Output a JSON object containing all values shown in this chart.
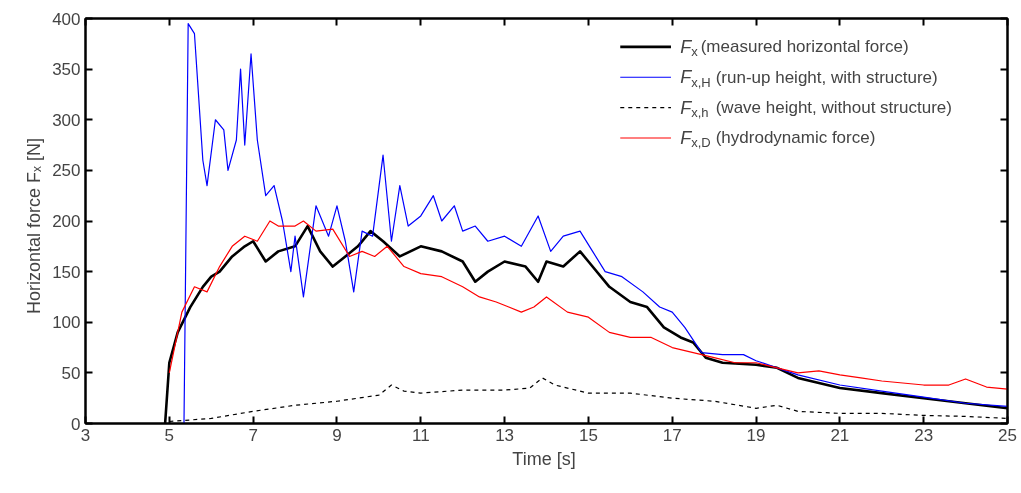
{
  "chart_data": {
    "type": "line",
    "xlabel": "Time  [s]",
    "ylabel": "Horizontal force  Fₓ  [N]",
    "xlim": [
      3,
      25
    ],
    "ylim": [
      0,
      400
    ],
    "xticks": [
      3,
      5,
      7,
      9,
      11,
      13,
      15,
      17,
      19,
      21,
      23,
      25
    ],
    "yticks": [
      0,
      50,
      100,
      150,
      200,
      250,
      300,
      350,
      400
    ],
    "grid": false,
    "legend": "top right",
    "series": [
      {
        "name": "F$_{x}$ (measured horizontal force)",
        "color": "#000000",
        "line_style": "solid",
        "x": [
          4.9,
          5.0,
          5.2,
          5.5,
          5.8,
          6.0,
          6.2,
          6.5,
          6.8,
          7.0,
          7.3,
          7.6,
          8.0,
          8.3,
          8.6,
          8.9,
          9.2,
          9.5,
          9.8,
          10.1,
          10.5,
          11.0,
          11.5,
          12.0,
          12.3,
          12.6,
          13.0,
          13.5,
          13.8,
          14.0,
          14.4,
          14.8,
          15.0,
          15.5,
          16.0,
          16.4,
          16.8,
          17.2,
          17.5,
          17.8,
          18.2,
          19.0,
          19.5,
          20.0,
          21.0,
          22.0,
          23.0,
          24.0,
          25.0
        ],
        "values": [
          0,
          60,
          90,
          115,
          135,
          145,
          150,
          165,
          175,
          180,
          160,
          170,
          175,
          195,
          170,
          155,
          165,
          175,
          190,
          180,
          165,
          175,
          170,
          160,
          140,
          150,
          160,
          155,
          140,
          160,
          155,
          170,
          160,
          135,
          120,
          115,
          95,
          85,
          80,
          65,
          60,
          58,
          55,
          45,
          35,
          30,
          25,
          20,
          15
        ]
      },
      {
        "name": "F$_{x,H}$ (run-up height, with structure)",
        "color": "#0000ff",
        "line_style": "solid",
        "x": [
          5.35,
          5.45,
          5.6,
          5.8,
          5.9,
          6.1,
          6.3,
          6.4,
          6.6,
          6.7,
          6.8,
          6.95,
          7.1,
          7.3,
          7.5,
          7.7,
          7.9,
          8.0,
          8.2,
          8.5,
          8.8,
          9.0,
          9.2,
          9.4,
          9.6,
          9.85,
          10.1,
          10.3,
          10.5,
          10.7,
          11.0,
          11.3,
          11.5,
          11.8,
          12.0,
          12.3,
          12.6,
          13.0,
          13.4,
          13.8,
          14.1,
          14.4,
          14.8,
          15.1,
          15.4,
          15.8,
          16.3,
          16.7,
          17.0,
          17.3,
          17.7,
          18.2,
          18.7,
          19.0,
          19.5,
          20.0,
          21.0,
          22.0,
          23.0,
          24.0,
          25.0
        ],
        "values": [
          0,
          395,
          385,
          260,
          235,
          300,
          290,
          250,
          280,
          350,
          275,
          365,
          280,
          225,
          235,
          200,
          150,
          185,
          125,
          215,
          185,
          215,
          180,
          130,
          190,
          185,
          265,
          180,
          235,
          195,
          205,
          225,
          200,
          215,
          190,
          195,
          180,
          185,
          175,
          205,
          170,
          185,
          190,
          170,
          150,
          145,
          130,
          115,
          110,
          95,
          70,
          68,
          68,
          62,
          55,
          48,
          38,
          32,
          26,
          20,
          17
        ]
      },
      {
        "name": "F$_{x,h}$ (wave height, without structure)",
        "color": "#000000",
        "line_style": "dashed",
        "x": [
          5.0,
          6.0,
          7.0,
          8.0,
          9.0,
          10.0,
          10.3,
          10.6,
          11.0,
          12.0,
          13.0,
          13.6,
          13.9,
          14.2,
          15.0,
          16.0,
          17.0,
          18.0,
          19.0,
          19.5,
          20.0,
          21.0,
          22.0,
          23.0,
          24.0,
          25.0
        ],
        "values": [
          2,
          5,
          12,
          18,
          22,
          28,
          38,
          32,
          30,
          33,
          33,
          35,
          45,
          38,
          30,
          30,
          25,
          22,
          15,
          18,
          12,
          10,
          10,
          8,
          7,
          5
        ]
      },
      {
        "name": "F$_{x,D}$ (hydrodynamic force)",
        "color": "#ff0000",
        "line_style": "solid",
        "x": [
          5.0,
          5.3,
          5.6,
          5.9,
          6.2,
          6.5,
          6.8,
          7.1,
          7.4,
          7.6,
          8.0,
          8.2,
          8.5,
          8.9,
          9.3,
          9.6,
          9.9,
          10.2,
          10.6,
          11.0,
          11.5,
          12.0,
          12.4,
          12.8,
          13.1,
          13.4,
          13.7,
          14.0,
          14.5,
          15.0,
          15.5,
          16.0,
          16.5,
          17.0,
          17.5,
          18.0,
          18.5,
          19.0,
          19.5,
          20.0,
          20.5,
          21.0,
          21.5,
          22.0,
          22.5,
          23.0,
          23.6,
          24.0,
          24.5,
          25.0
        ],
        "values": [
          50,
          110,
          135,
          130,
          155,
          175,
          185,
          180,
          200,
          195,
          195,
          200,
          190,
          192,
          165,
          170,
          165,
          175,
          155,
          148,
          145,
          135,
          125,
          120,
          115,
          110,
          115,
          125,
          110,
          105,
          90,
          85,
          85,
          75,
          70,
          65,
          60,
          60,
          55,
          50,
          52,
          48,
          45,
          42,
          40,
          38,
          38,
          44,
          36,
          34
        ]
      }
    ]
  }
}
